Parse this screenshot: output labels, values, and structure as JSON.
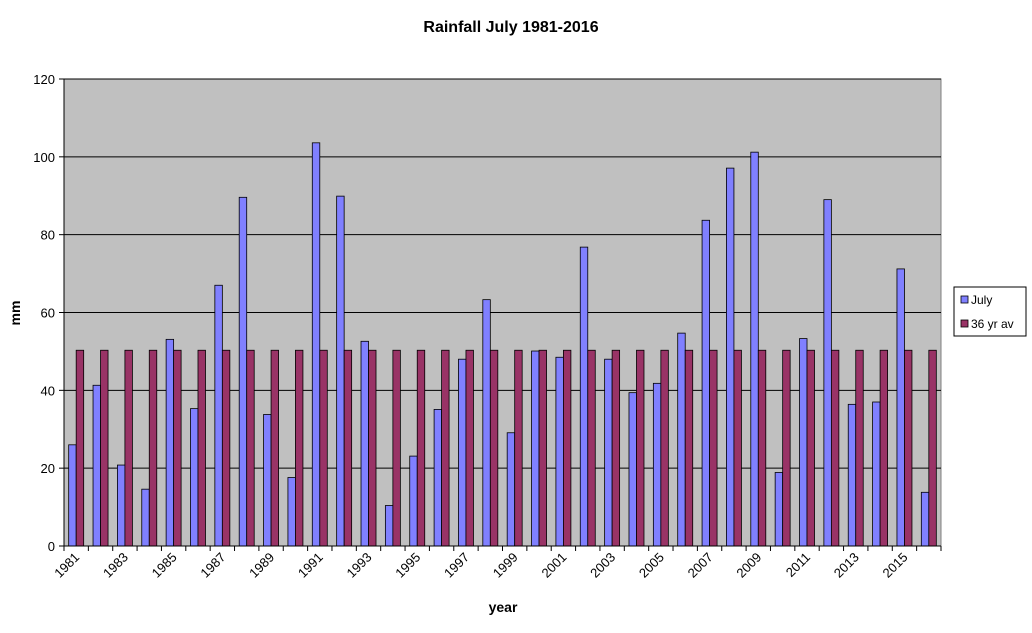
{
  "chart_data": {
    "type": "bar",
    "title": "Rainfall July 1981-2016",
    "xlabel": "year",
    "ylabel": "mm",
    "ylim": [
      0,
      120
    ],
    "yticks": [
      0,
      20,
      40,
      60,
      80,
      100,
      120
    ],
    "grid": true,
    "legend_position": "right",
    "plot_background": "#c0c0c0",
    "categories": [
      "1981",
      "1982",
      "1983",
      "1984",
      "1985",
      "1986",
      "1987",
      "1988",
      "1989",
      "1990",
      "1991",
      "1992",
      "1993",
      "1994",
      "1995",
      "1996",
      "1997",
      "1998",
      "1999",
      "2000",
      "2001",
      "2002",
      "2003",
      "2004",
      "2005",
      "2006",
      "2007",
      "2008",
      "2009",
      "2010",
      "2011",
      "2012",
      "2013",
      "2014",
      "2015",
      "2016"
    ],
    "tick_labels": [
      "1981",
      "",
      "1983",
      "",
      "1985",
      "",
      "1987",
      "",
      "1989",
      "",
      "1991",
      "",
      "1993",
      "",
      "1995",
      "",
      "1997",
      "",
      "1999",
      "",
      "2001",
      "",
      "2003",
      "",
      "2005",
      "",
      "2007",
      "",
      "2009",
      "",
      "2011",
      "",
      "2013",
      "",
      "2015",
      ""
    ],
    "series": [
      {
        "name": "July",
        "color": "#8080ff",
        "values": [
          26,
          41.3,
          20.8,
          14.6,
          53.1,
          35.3,
          67,
          89.6,
          33.8,
          17.6,
          103.6,
          89.9,
          52.6,
          10.4,
          23.1,
          35.1,
          48,
          63.3,
          29.1,
          50.1,
          48.5,
          76.8,
          48,
          39.4,
          41.8,
          54.7,
          83.7,
          97.1,
          101.2,
          18.9,
          53.3,
          89,
          36.4,
          37,
          71.2,
          13.8
        ]
      },
      {
        "name": "36 yr av",
        "color": "#993366",
        "values": [
          50.3,
          50.3,
          50.3,
          50.3,
          50.3,
          50.3,
          50.3,
          50.3,
          50.3,
          50.3,
          50.3,
          50.3,
          50.3,
          50.3,
          50.3,
          50.3,
          50.3,
          50.3,
          50.3,
          50.3,
          50.3,
          50.3,
          50.3,
          50.3,
          50.3,
          50.3,
          50.3,
          50.3,
          50.3,
          50.3,
          50.3,
          50.3,
          50.3,
          50.3,
          50.3,
          50.3
        ]
      }
    ]
  }
}
